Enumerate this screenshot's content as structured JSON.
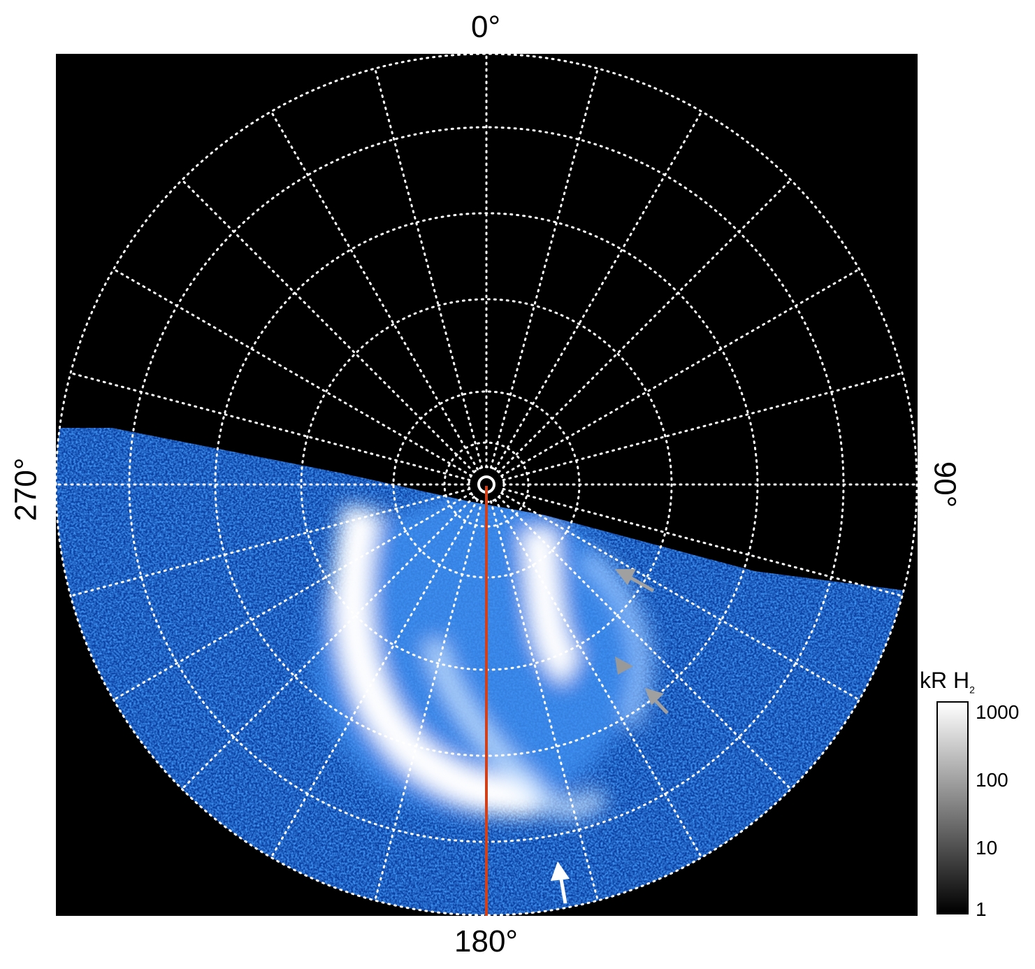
{
  "axes": {
    "top_label": "0°",
    "bottom_label": "180°",
    "left_label": "270°",
    "right_label": "90°"
  },
  "grid": {
    "style": "dotted",
    "color": "#ffffff",
    "longitude_step_deg": 15
  },
  "colorbar": {
    "title": "kR H",
    "title_subscript": "2",
    "scale": "log",
    "colormap": "black-to-white",
    "ticks": [
      "1000",
      "100",
      "10",
      "1"
    ]
  },
  "colors": {
    "background": "#000000",
    "aurora": "#1e6fe0",
    "meridian_line": "#d2401a",
    "arrow_gray": "#a0a0a0",
    "arrow_white": "#ffffff"
  }
}
